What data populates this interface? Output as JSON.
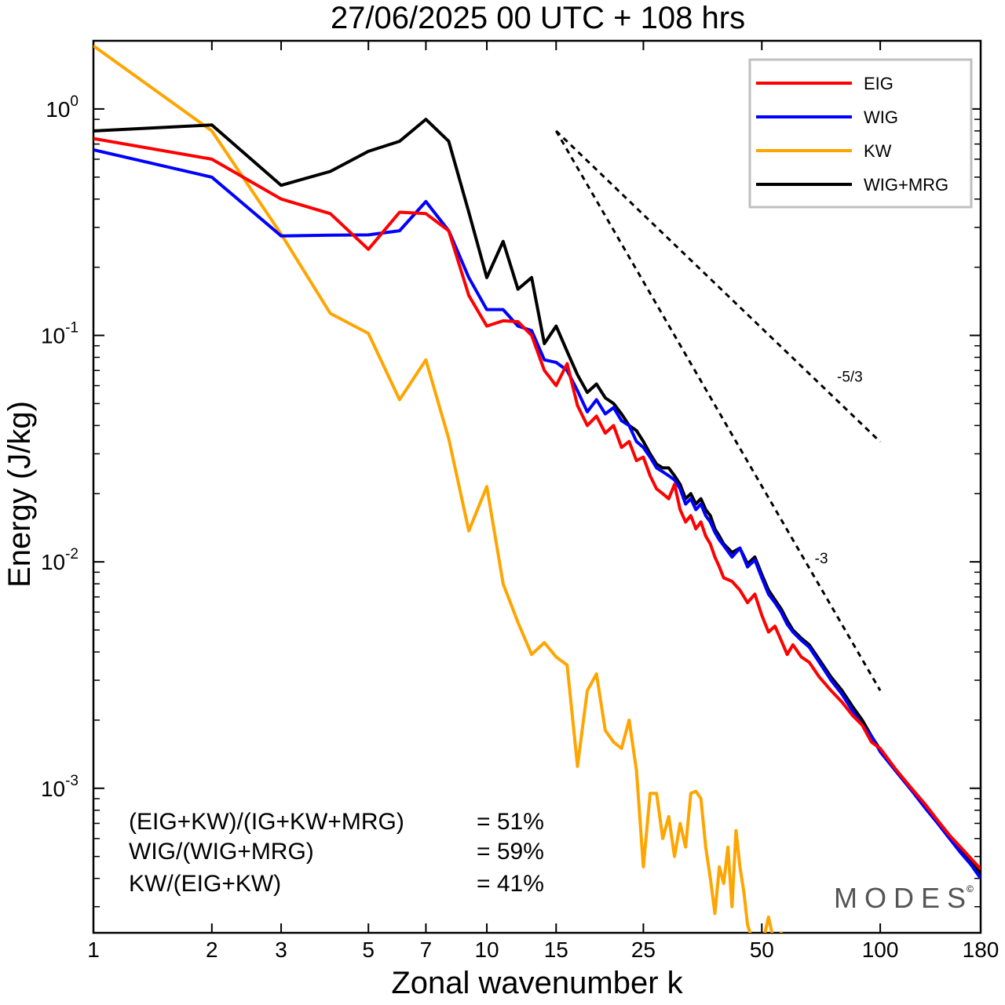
{
  "chart_data": {
    "type": "line",
    "title": "27/06/2025  00 UTC  + 108 hrs",
    "xlabel": "Zonal wavenumber k",
    "ylabel": "Energy (J/kg)",
    "x_scale": "log",
    "y_scale": "log",
    "xlim": [
      1,
      180
    ],
    "ylim": [
      0.00023,
      2.0
    ],
    "x_ticks": [
      1,
      2,
      3,
      5,
      7,
      10,
      15,
      25,
      50,
      100,
      180
    ],
    "x_tick_labels": [
      "1",
      "2",
      "3",
      "5",
      "7",
      "10",
      "15",
      "25",
      "50",
      "100",
      "180"
    ],
    "y_ticks": [
      {
        "value": 1,
        "base": "10",
        "exp": "0"
      },
      {
        "value": 0.1,
        "base": "10",
        "exp": "-1"
      },
      {
        "value": 0.01,
        "base": "10",
        "exp": "-2"
      },
      {
        "value": 0.001,
        "base": "10",
        "exp": "-3"
      }
    ],
    "grid": false,
    "legend_position": "top-right",
    "series": [
      {
        "name": "EIG",
        "color": "#ff0000",
        "points": [
          [
            1,
            0.74
          ],
          [
            2,
            0.6
          ],
          [
            3,
            0.4
          ],
          [
            4,
            0.345
          ],
          [
            5,
            0.24
          ],
          [
            6,
            0.35
          ],
          [
            7,
            0.345
          ],
          [
            8,
            0.29
          ],
          [
            9,
            0.15
          ],
          [
            10,
            0.11
          ],
          [
            11,
            0.116
          ],
          [
            12,
            0.115
          ],
          [
            13,
            0.1
          ],
          [
            14,
            0.07
          ],
          [
            15,
            0.06
          ],
          [
            16,
            0.075
          ],
          [
            17,
            0.049
          ],
          [
            18,
            0.04
          ],
          [
            19,
            0.044
          ],
          [
            20,
            0.037
          ],
          [
            21,
            0.04
          ],
          [
            22,
            0.032
          ],
          [
            23,
            0.034
          ],
          [
            24,
            0.028
          ],
          [
            25,
            0.029
          ],
          [
            26,
            0.024
          ],
          [
            27,
            0.021
          ],
          [
            28,
            0.02
          ],
          [
            29,
            0.019
          ],
          [
            30,
            0.022
          ],
          [
            31,
            0.017
          ],
          [
            32,
            0.015
          ],
          [
            33,
            0.016
          ],
          [
            34,
            0.014
          ],
          [
            35,
            0.015
          ],
          [
            36,
            0.013
          ],
          [
            37,
            0.012
          ],
          [
            38,
            0.0105
          ],
          [
            39,
            0.0095
          ],
          [
            40,
            0.0085
          ],
          [
            42,
            0.0082
          ],
          [
            44,
            0.0075
          ],
          [
            46,
            0.0066
          ],
          [
            48,
            0.0072
          ],
          [
            50,
            0.0058
          ],
          [
            52,
            0.0049
          ],
          [
            54,
            0.0052
          ],
          [
            56,
            0.0045
          ],
          [
            58,
            0.0039
          ],
          [
            60,
            0.0043
          ],
          [
            63,
            0.0038
          ],
          [
            66,
            0.0036
          ],
          [
            70,
            0.0031
          ],
          [
            75,
            0.0027
          ],
          [
            80,
            0.0024
          ],
          [
            85,
            0.0021
          ],
          [
            90,
            0.0019
          ],
          [
            95,
            0.0016
          ],
          [
            100,
            0.0015
          ],
          [
            110,
            0.0012
          ],
          [
            120,
            0.001
          ],
          [
            130,
            0.00085
          ],
          [
            140,
            0.00072
          ],
          [
            150,
            0.00062
          ],
          [
            160,
            0.00055
          ],
          [
            170,
            0.00049
          ],
          [
            180,
            0.00044
          ]
        ]
      },
      {
        "name": "WIG",
        "color": "#0000ff",
        "points": [
          [
            1,
            0.66
          ],
          [
            2,
            0.5
          ],
          [
            3,
            0.275
          ],
          [
            4,
            0.277
          ],
          [
            5,
            0.278
          ],
          [
            6,
            0.29
          ],
          [
            7,
            0.39
          ],
          [
            8,
            0.29
          ],
          [
            9,
            0.18
          ],
          [
            10,
            0.13
          ],
          [
            11,
            0.13
          ],
          [
            12,
            0.11
          ],
          [
            13,
            0.105
          ],
          [
            14,
            0.078
          ],
          [
            15,
            0.076
          ],
          [
            16,
            0.07
          ],
          [
            17,
            0.057
          ],
          [
            18,
            0.046
          ],
          [
            19,
            0.052
          ],
          [
            20,
            0.045
          ],
          [
            21,
            0.048
          ],
          [
            22,
            0.042
          ],
          [
            23,
            0.04
          ],
          [
            24,
            0.034
          ],
          [
            25,
            0.032
          ],
          [
            26,
            0.029
          ],
          [
            27,
            0.026
          ],
          [
            28,
            0.025
          ],
          [
            29,
            0.024
          ],
          [
            30,
            0.023
          ],
          [
            31,
            0.021
          ],
          [
            32,
            0.018
          ],
          [
            33,
            0.019
          ],
          [
            34,
            0.017
          ],
          [
            35,
            0.018
          ],
          [
            36,
            0.016
          ],
          [
            37,
            0.015
          ],
          [
            38,
            0.0135
          ],
          [
            39,
            0.0125
          ],
          [
            40,
            0.0118
          ],
          [
            42,
            0.0105
          ],
          [
            44,
            0.0115
          ],
          [
            46,
            0.0095
          ],
          [
            48,
            0.0102
          ],
          [
            50,
            0.0085
          ],
          [
            52,
            0.0072
          ],
          [
            54,
            0.0066
          ],
          [
            56,
            0.006
          ],
          [
            58,
            0.0053
          ],
          [
            60,
            0.0049
          ],
          [
            63,
            0.0045
          ],
          [
            66,
            0.0042
          ],
          [
            70,
            0.0036
          ],
          [
            75,
            0.003
          ],
          [
            80,
            0.0026
          ],
          [
            85,
            0.0022
          ],
          [
            90,
            0.0019
          ],
          [
            95,
            0.0017
          ],
          [
            100,
            0.00145
          ],
          [
            110,
            0.00118
          ],
          [
            120,
            0.00098
          ],
          [
            130,
            0.00082
          ],
          [
            140,
            0.0007
          ],
          [
            150,
            0.0006
          ],
          [
            160,
            0.00052
          ],
          [
            170,
            0.00046
          ],
          [
            180,
            0.0004
          ]
        ]
      },
      {
        "name": "KW",
        "color": "#ffa500",
        "points": [
          [
            1,
            1.9
          ],
          [
            2,
            0.8
          ],
          [
            3,
            0.28
          ],
          [
            4,
            0.125
          ],
          [
            5,
            0.102
          ],
          [
            6,
            0.052
          ],
          [
            7,
            0.078
          ],
          [
            8,
            0.035
          ],
          [
            9,
            0.0137
          ],
          [
            10,
            0.0215
          ],
          [
            11,
            0.008
          ],
          [
            12,
            0.0054
          ],
          [
            13,
            0.0039
          ],
          [
            14,
            0.0044
          ],
          [
            15,
            0.0038
          ],
          [
            16,
            0.0035
          ],
          [
            17,
            0.00125
          ],
          [
            18,
            0.0027
          ],
          [
            19,
            0.0032
          ],
          [
            20,
            0.0018
          ],
          [
            21,
            0.0016
          ],
          [
            22,
            0.0015
          ],
          [
            23,
            0.002
          ],
          [
            24,
            0.0012
          ],
          [
            25,
            0.00045
          ],
          [
            26,
            0.00095
          ],
          [
            27,
            0.00095
          ],
          [
            28,
            0.0006
          ],
          [
            29,
            0.00075
          ],
          [
            30,
            0.0005
          ],
          [
            31,
            0.0007
          ],
          [
            32,
            0.00055
          ],
          [
            33,
            0.00095
          ],
          [
            34,
            0.00097
          ],
          [
            35,
            0.0009
          ],
          [
            36,
            0.00055
          ],
          [
            37,
            0.0004
          ],
          [
            38,
            0.00028
          ],
          [
            39,
            0.00045
          ],
          [
            40,
            0.00038
          ],
          [
            41,
            0.00055
          ],
          [
            42,
            0.0003
          ],
          [
            43,
            0.00065
          ],
          [
            44,
            0.00045
          ],
          [
            45,
            0.00035
          ],
          [
            46,
            0.00025
          ],
          [
            47,
            0.00022
          ],
          [
            48,
            0.00018
          ],
          [
            50,
            0.0002
          ],
          [
            52,
            0.00027
          ],
          [
            54,
            0.0002
          ],
          [
            56,
            0.00023
          ],
          [
            58,
            0.0002
          ],
          [
            60,
            0.00022
          ]
        ]
      },
      {
        "name": "WIG+MRG",
        "color": "#000000",
        "points": [
          [
            1,
            0.8
          ],
          [
            2,
            0.85
          ],
          [
            3,
            0.46
          ],
          [
            4,
            0.53
          ],
          [
            5,
            0.65
          ],
          [
            6,
            0.72
          ],
          [
            7,
            0.9
          ],
          [
            8,
            0.72
          ],
          [
            9,
            0.35
          ],
          [
            10,
            0.18
          ],
          [
            11,
            0.26
          ],
          [
            12,
            0.16
          ],
          [
            13,
            0.18
          ],
          [
            14,
            0.092
          ],
          [
            15,
            0.11
          ],
          [
            16,
            0.085
          ],
          [
            17,
            0.067
          ],
          [
            18,
            0.056
          ],
          [
            19,
            0.061
          ],
          [
            20,
            0.053
          ],
          [
            21,
            0.05
          ],
          [
            22,
            0.045
          ],
          [
            23,
            0.04
          ],
          [
            24,
            0.038
          ],
          [
            25,
            0.034
          ],
          [
            26,
            0.03
          ],
          [
            27,
            0.027
          ],
          [
            28,
            0.026
          ],
          [
            29,
            0.026
          ],
          [
            30,
            0.024
          ],
          [
            31,
            0.022
          ],
          [
            32,
            0.019
          ],
          [
            33,
            0.02
          ],
          [
            34,
            0.018
          ],
          [
            35,
            0.019
          ],
          [
            36,
            0.017
          ],
          [
            37,
            0.016
          ],
          [
            38,
            0.014
          ],
          [
            39,
            0.013
          ],
          [
            40,
            0.012
          ],
          [
            42,
            0.011
          ],
          [
            44,
            0.0115
          ],
          [
            46,
            0.0098
          ],
          [
            48,
            0.0105
          ],
          [
            50,
            0.0088
          ],
          [
            52,
            0.0075
          ],
          [
            54,
            0.0068
          ],
          [
            56,
            0.0062
          ],
          [
            58,
            0.0055
          ],
          [
            60,
            0.005
          ],
          [
            63,
            0.0046
          ],
          [
            66,
            0.0043
          ],
          [
            70,
            0.0037
          ],
          [
            75,
            0.0031
          ],
          [
            80,
            0.0027
          ],
          [
            85,
            0.0023
          ],
          [
            90,
            0.002
          ],
          [
            95,
            0.0017
          ],
          [
            100,
            0.00148
          ],
          [
            110,
            0.0012
          ],
          [
            120,
            0.001
          ],
          [
            130,
            0.00085
          ],
          [
            140,
            0.00072
          ],
          [
            150,
            0.00062
          ],
          [
            160,
            0.00054
          ],
          [
            170,
            0.00047
          ],
          [
            180,
            0.00042
          ]
        ]
      }
    ],
    "reference_slopes": [
      {
        "label": "-5/3",
        "slope": -1.6667,
        "x_start": 15,
        "x_end": 100,
        "y_start": 0.8
      },
      {
        "label": "-3",
        "slope": -3,
        "x_start": 15,
        "x_end": 100,
        "y_start": 0.8
      }
    ],
    "annotations": [
      {
        "label": "(EIG+KW)/(IG+KW+MRG)",
        "value": "= 51%"
      },
      {
        "label": "WIG/(WIG+MRG)",
        "value": "= 59%"
      },
      {
        "label": "KW/(EIG+KW)",
        "value": "= 41%"
      }
    ],
    "brand": "MODES",
    "brand_mark": "©"
  }
}
